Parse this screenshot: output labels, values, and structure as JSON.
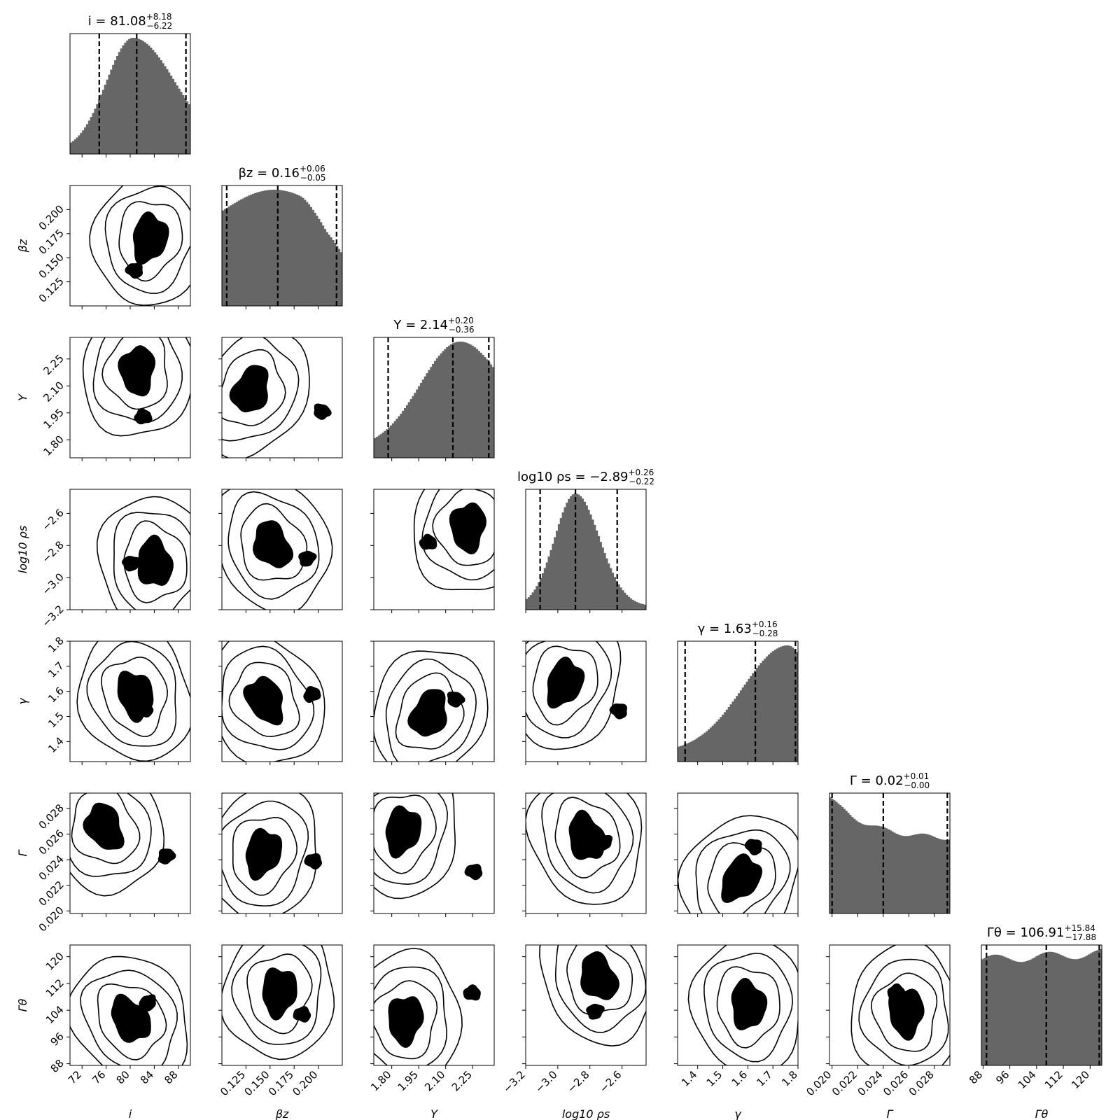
{
  "figure": {
    "type": "corner-plot"
  },
  "chart_data": {
    "type": "corner",
    "colors": {
      "hist_fill": "#666666",
      "contour": "#000000",
      "quantile_line": "#000000"
    },
    "parameters": [
      {
        "id": "i",
        "axis_label": "i",
        "title_name": "i",
        "median": "81.08",
        "plus": "+8.18",
        "minus": "−6.22",
        "range": [
          70,
          90
        ],
        "ticks": [
          "72",
          "76",
          "80",
          "84",
          "88"
        ],
        "tick_values": [
          72,
          76,
          80,
          84,
          88
        ],
        "quantiles": [
          74.86,
          81.08,
          89.26
        ],
        "hist_shape": "peak",
        "hist_params": {
          "mode": 80.5,
          "sigL": 4.5,
          "sigR": 7.0
        }
      },
      {
        "id": "beta_z",
        "axis_label": "βz",
        "title_name": "βz",
        "median": "0.16",
        "plus": "+0.06",
        "minus": "−0.05",
        "range": [
          0.1,
          0.225
        ],
        "ticks": [
          "0.125",
          "0.150",
          "0.175",
          "0.200"
        ],
        "tick_values": [
          0.125,
          0.15,
          0.175,
          0.2
        ],
        "quantiles": [
          0.105,
          0.158,
          0.219
        ],
        "hist_shape": "plateau",
        "hist_params": {}
      },
      {
        "id": "Y",
        "axis_label": "Y",
        "title_name": "Y",
        "median": "2.14",
        "plus": "+0.20",
        "minus": "−0.36",
        "range": [
          1.7,
          2.37
        ],
        "ticks": [
          "1.80",
          "1.95",
          "2.10",
          "2.25"
        ],
        "tick_values": [
          1.8,
          1.95,
          2.1,
          2.25
        ],
        "quantiles": [
          1.78,
          2.14,
          2.34
        ],
        "hist_shape": "rise",
        "hist_params": {
          "mode": 2.18,
          "sigL": 0.22,
          "sigR": 0.25
        }
      },
      {
        "id": "log10_rho_s",
        "axis_label": "log10 ρs",
        "title_name": "log10 ρs",
        "median": "−2.89",
        "plus": "+0.26",
        "minus": "−0.22",
        "range": [
          -3.2,
          -2.45
        ],
        "ticks": [
          "−3.2",
          "−3.0",
          "−2.8",
          "−2.6"
        ],
        "tick_values": [
          -3.2,
          -3.0,
          -2.8,
          -2.6
        ],
        "quantiles": [
          -3.11,
          -2.89,
          -2.63
        ],
        "hist_shape": "peak",
        "hist_params": {
          "mode": -2.89,
          "sigL": 0.13,
          "sigR": 0.15
        }
      },
      {
        "id": "gamma",
        "axis_label": "γ",
        "title_name": "γ",
        "median": "1.63",
        "plus": "+0.16",
        "minus": "−0.28",
        "range": [
          1.32,
          1.8
        ],
        "ticks": [
          "1.4",
          "1.5",
          "1.6",
          "1.7",
          "1.8"
        ],
        "tick_values": [
          1.4,
          1.5,
          1.6,
          1.7,
          1.8
        ],
        "quantiles": [
          1.35,
          1.63,
          1.79
        ],
        "hist_shape": "rise",
        "hist_params": {
          "mode": 1.76,
          "sigL": 0.18,
          "sigR": 0.1
        }
      },
      {
        "id": "Gamma",
        "axis_label": "Γ",
        "title_name": "Γ",
        "median": "0.02",
        "plus": "+0.01",
        "minus": "−0.00",
        "range": [
          0.0198,
          0.0292
        ],
        "ticks": [
          "0.020",
          "0.022",
          "0.024",
          "0.026",
          "0.028"
        ],
        "tick_values": [
          0.02,
          0.022,
          0.024,
          0.026,
          0.028
        ],
        "quantiles": [
          0.02,
          0.024,
          0.029
        ],
        "hist_shape": "decay",
        "hist_params": {}
      },
      {
        "id": "Gamma_theta",
        "axis_label": "Γθ",
        "title_name": "Γθ",
        "median": "106.91",
        "plus": "+15.84",
        "minus": "−17.88",
        "range": [
          87.5,
          123.5
        ],
        "ticks": [
          "88",
          "96",
          "104",
          "112",
          "120"
        ],
        "tick_values": [
          88,
          96,
          104,
          112,
          120
        ],
        "quantiles": [
          89.03,
          106.91,
          122.75
        ],
        "hist_shape": "flat",
        "hist_params": {}
      }
    ]
  }
}
